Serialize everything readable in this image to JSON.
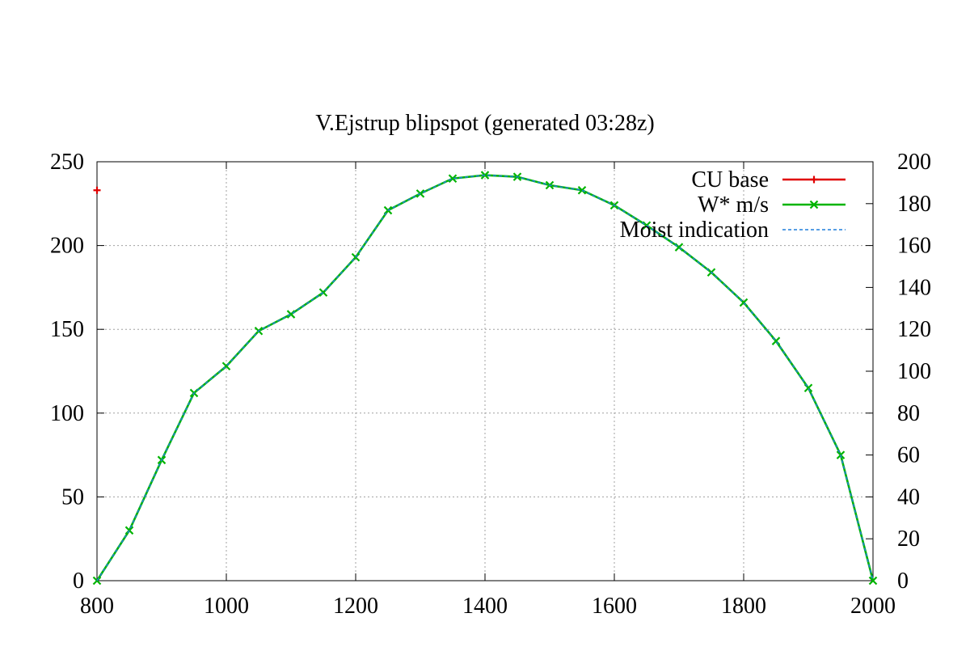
{
  "chart_data": {
    "type": "line",
    "title": "V.Ejstrup  blipspot  (generated  03:28z)",
    "xlim": [
      800,
      2000
    ],
    "ylim": [
      0,
      250
    ],
    "y2lim": [
      0,
      200
    ],
    "x_ticks": [
      800,
      1000,
      1200,
      1400,
      1600,
      1800,
      2000
    ],
    "y_ticks": [
      0,
      50,
      100,
      150,
      200,
      250
    ],
    "y2_ticks": [
      0,
      20,
      40,
      60,
      80,
      100,
      120,
      140,
      160,
      180,
      200
    ],
    "grid": true,
    "legend_position": "top-right",
    "series": [
      {
        "name": "CU  base",
        "color": "#e00000",
        "marker": "plus",
        "x": [
          800
        ],
        "y": [
          233
        ]
      },
      {
        "name": "W*  m/s",
        "color": "#00b400",
        "marker": "cross",
        "x": [
          800,
          850,
          900,
          950,
          1000,
          1050,
          1100,
          1150,
          1200,
          1250,
          1300,
          1350,
          1400,
          1450,
          1500,
          1550,
          1600,
          1650,
          1700,
          1750,
          1800,
          1850,
          1900,
          1950,
          2000
        ],
        "y": [
          0,
          30,
          72,
          112,
          128,
          149,
          159,
          172,
          193,
          221,
          231,
          240,
          242,
          241,
          236,
          233,
          224,
          212,
          199,
          184,
          166,
          143,
          115,
          75,
          0
        ]
      },
      {
        "name": "Moist  indication",
        "color": "#1e7fdc",
        "marker": "none",
        "dashed": true,
        "x": [
          800,
          850,
          900,
          950,
          1000,
          1050,
          1100,
          1150,
          1200,
          1250,
          1300,
          1350,
          1400,
          1450,
          1500,
          1550,
          1600,
          1650,
          1700,
          1750,
          1800,
          1850,
          1900,
          1950,
          2000
        ],
        "y": [
          0,
          30,
          72,
          112,
          128,
          149,
          159,
          172,
          193,
          221,
          231,
          240,
          242,
          241,
          236,
          233,
          224,
          212,
          199,
          184,
          166,
          143,
          115,
          75,
          0
        ]
      }
    ]
  }
}
